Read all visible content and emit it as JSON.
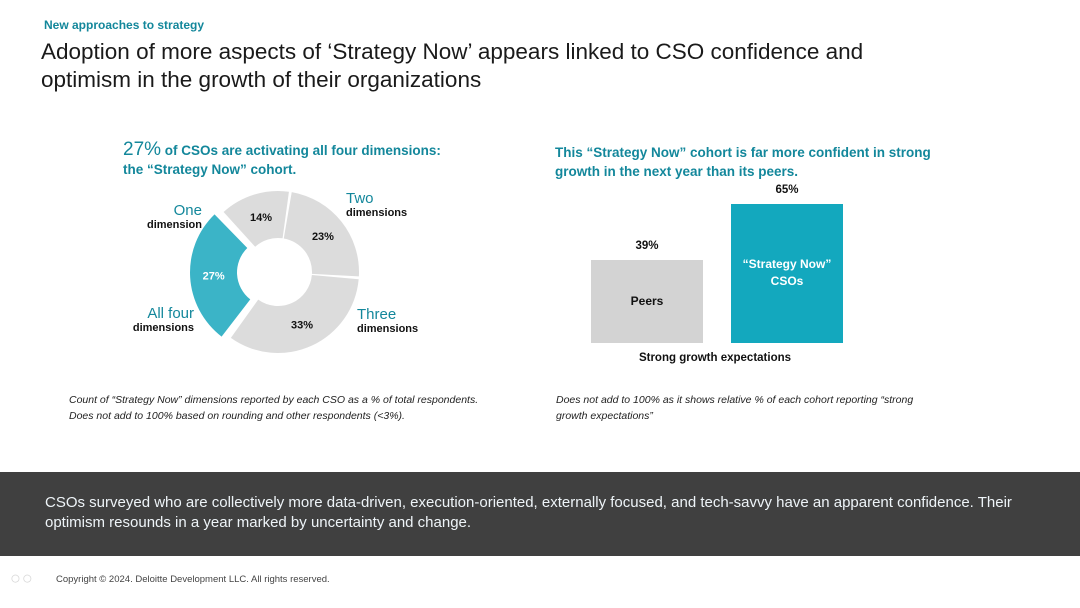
{
  "header": {
    "eyebrow": "New approaches to strategy",
    "title": "Adoption of more aspects of ‘Strategy Now’ appears linked to CSO confidence and optimism in the growth of their organizations"
  },
  "left_panel": {
    "heading_pct": "27%",
    "heading_line1": " of CSOs are activating all four dimensions:",
    "heading_line2": "the “Strategy Now” cohort.",
    "note_line1": "Count of “Strategy Now” dimensions reported by each CSO as a % of total respondents.",
    "note_line2": "Does not add to 100% based on rounding and other respondents (<3%)."
  },
  "right_panel": {
    "heading_line1": "This “Strategy Now” cohort is far more confident in strong",
    "heading_line2": "growth in the next year than its peers.",
    "note_line1": "Does not add to 100% as it shows relative % of each cohort reporting “strong",
    "note_line2": "growth expectations”"
  },
  "chart_data": [
    {
      "type": "pie",
      "title": "27% of CSOs are activating all four dimensions: the “Strategy Now” cohort.",
      "donut": true,
      "categories": [
        "One dimension",
        "Two dimensions",
        "Three dimensions",
        "All four dimensions"
      ],
      "values": [
        14,
        23,
        33,
        27
      ],
      "value_labels": [
        "14%",
        "23%",
        "33%",
        "27%"
      ],
      "category_main": [
        "One",
        "Two",
        "Three",
        "All four"
      ],
      "category_sub": [
        "dimension",
        "dimensions",
        "dimensions",
        "dimensions"
      ],
      "colors": [
        "#dcdcdc",
        "#dcdcdc",
        "#dcdcdc",
        "#3bb4c7"
      ],
      "highlighted": "All four dimensions"
    },
    {
      "type": "bar",
      "title": "This “Strategy Now” cohort is far more confident in strong growth in the next year than its peers.",
      "categories": [
        "Peers",
        "“Strategy Now” CSOs"
      ],
      "values": [
        39,
        65
      ],
      "value_labels": [
        "39%",
        "65%"
      ],
      "bar_labels": [
        [
          "Peers"
        ],
        [
          "“Strategy Now”",
          "CSOs"
        ]
      ],
      "xlabel": "Strong growth expectations",
      "ylabel": "",
      "ylim": [
        0,
        100
      ],
      "colors": [
        "#d3d3d3",
        "#13a8be"
      ],
      "label_colors": [
        "#111111",
        "#ffffff"
      ]
    }
  ],
  "summary": {
    "text": "CSOs surveyed who are collectively more data-driven, execution-oriented, externally focused, and tech-savvy have an apparent confidence. Their optimism resounds in a year marked by uncertainty and change."
  },
  "footer": {
    "copyright": "Copyright © 2024. Deloitte Development LLC. All rights reserved."
  }
}
